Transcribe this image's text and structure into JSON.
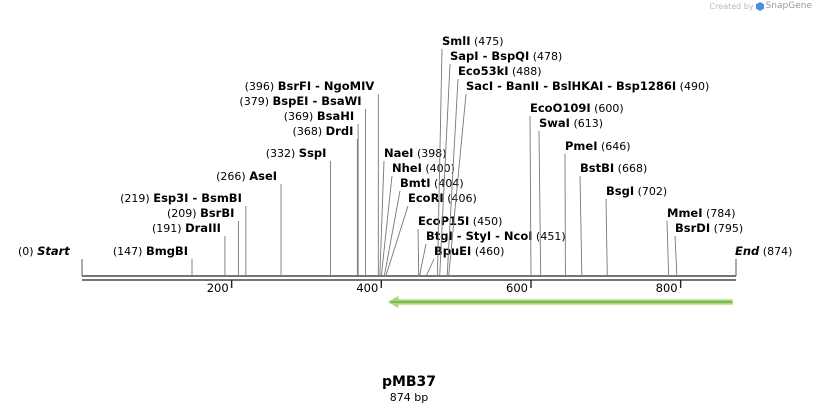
{
  "credit": {
    "prefix": "Created by",
    "brand": "SnapGene",
    "accent": "#4a90d9"
  },
  "plasmid": {
    "name": "pMB37",
    "length_label": "874 bp",
    "length": 874
  },
  "ends": {
    "start": {
      "label": "Start",
      "pos": "(0)"
    },
    "end": {
      "label": "End",
      "pos": "(874)"
    }
  },
  "ticks": [
    200,
    400,
    600,
    800
  ],
  "feature": {
    "start": 410,
    "end": 869,
    "direction": "reverse",
    "color": "#a8d878",
    "stroke": "#5a9a2a"
  },
  "sites": [
    {
      "enzymes": [
        "BmgBI"
      ],
      "pos_label": "(147)",
      "cut": 147
    },
    {
      "enzymes": [
        "DraIII"
      ],
      "pos_label": "(191)",
      "cut": 191
    },
    {
      "enzymes": [
        "BsrBI"
      ],
      "pos_label": "(209)",
      "cut": 209
    },
    {
      "enzymes": [
        "Esp3I",
        "BsmBI"
      ],
      "pos_label": "(219)",
      "cut": 219
    },
    {
      "enzymes": [
        "AseI"
      ],
      "pos_label": "(266)",
      "cut": 266
    },
    {
      "enzymes": [
        "SspI"
      ],
      "pos_label": "(332)",
      "cut": 332
    },
    {
      "enzymes": [
        "DrdI"
      ],
      "pos_label": "(368)",
      "cut": 368
    },
    {
      "enzymes": [
        "BsaHI"
      ],
      "pos_label": "(369)",
      "cut": 369
    },
    {
      "enzymes": [
        "BspEI",
        "BsaWI"
      ],
      "pos_label": "(379)",
      "cut": 379
    },
    {
      "enzymes": [
        "BsrFI",
        "NgoMIV"
      ],
      "pos_label": "(396)",
      "cut": 396
    },
    {
      "enzymes": [
        "NaeI"
      ],
      "pos_label": "(398)",
      "cut": 398
    },
    {
      "enzymes": [
        "NheI"
      ],
      "pos_label": "(400)",
      "cut": 400
    },
    {
      "enzymes": [
        "BmtI"
      ],
      "pos_label": "(404)",
      "cut": 404
    },
    {
      "enzymes": [
        "EcoRI"
      ],
      "pos_label": "(406)",
      "cut": 406
    },
    {
      "enzymes": [
        "EcoP15I"
      ],
      "pos_label": "(450)",
      "cut": 450
    },
    {
      "enzymes": [
        "BtgI",
        "StyI",
        "NcoI"
      ],
      "pos_label": "(451)",
      "cut": 451
    },
    {
      "enzymes": [
        "BpuEI"
      ],
      "pos_label": "(460)",
      "cut": 460
    },
    {
      "enzymes": [
        "SmlI"
      ],
      "pos_label": "(475)",
      "cut": 475
    },
    {
      "enzymes": [
        "SapI",
        "BspQI"
      ],
      "pos_label": "(478)",
      "cut": 478
    },
    {
      "enzymes": [
        "Eco53kI"
      ],
      "pos_label": "(488)",
      "cut": 488
    },
    {
      "enzymes": [
        "SacI",
        "BanII",
        "BslHKAI",
        "Bsp1286I"
      ],
      "pos_label": "(490)",
      "cut": 490
    },
    {
      "enzymes": [
        "EcoO109I"
      ],
      "pos_label": "(600)",
      "cut": 600
    },
    {
      "enzymes": [
        "SwaI"
      ],
      "pos_label": "(613)",
      "cut": 613
    },
    {
      "enzymes": [
        "PmeI"
      ],
      "pos_label": "(646)",
      "cut": 646
    },
    {
      "enzymes": [
        "BstBI"
      ],
      "pos_label": "(668)",
      "cut": 668
    },
    {
      "enzymes": [
        "BsgI"
      ],
      "pos_label": "(702)",
      "cut": 702
    },
    {
      "enzymes": [
        "MmeI"
      ],
      "pos_label": "(784)",
      "cut": 784
    },
    {
      "enzymes": [
        "BsrDI"
      ],
      "pos_label": "(795)",
      "cut": 795
    }
  ]
}
